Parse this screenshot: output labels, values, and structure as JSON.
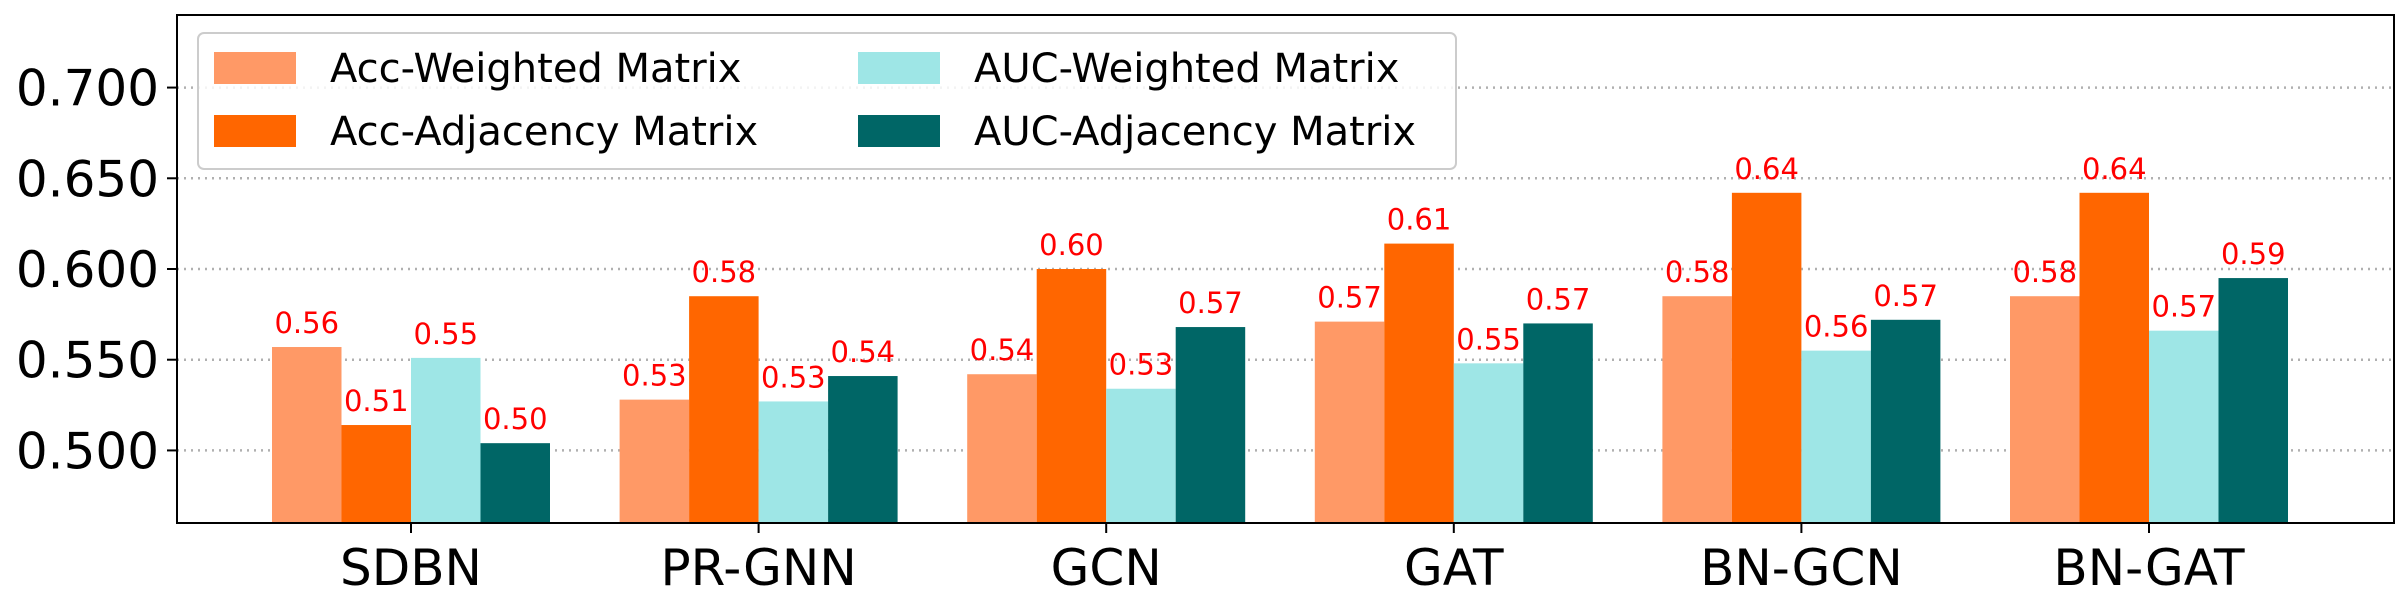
{
  "chart_data": {
    "type": "bar",
    "categories": [
      "SDBN",
      "PR-GNN",
      "GCN",
      "GAT",
      "BN-GCN",
      "BN-GAT"
    ],
    "series": [
      {
        "name": "Acc-Weighted Matrix",
        "color": "#ff9966",
        "values": [
          0.557,
          0.528,
          0.542,
          0.571,
          0.585,
          0.585
        ],
        "labels": [
          "0.56",
          "0.53",
          "0.54",
          "0.57",
          "0.58",
          "0.58"
        ]
      },
      {
        "name": "Acc-Adjacency Matrix",
        "color": "#ff6600",
        "values": [
          0.514,
          0.585,
          0.6,
          0.614,
          0.642,
          0.642
        ],
        "labels": [
          "0.51",
          "0.58",
          "0.60",
          "0.61",
          "0.64",
          "0.64"
        ]
      },
      {
        "name": "AUC-Weighted Matrix",
        "color": "#9ee6e6",
        "values": [
          0.551,
          0.527,
          0.534,
          0.548,
          0.555,
          0.566
        ],
        "labels": [
          "0.55",
          "0.53",
          "0.53",
          "0.55",
          "0.56",
          "0.57"
        ]
      },
      {
        "name": "AUC-Adjacency Matrix",
        "color": "#006666",
        "values": [
          0.504,
          0.541,
          0.568,
          0.57,
          0.572,
          0.595
        ],
        "labels": [
          "0.50",
          "0.54",
          "0.57",
          "0.57",
          "0.57",
          "0.59"
        ]
      }
    ],
    "yticks": [
      "0.500",
      "0.550",
      "0.600",
      "0.650",
      "0.700"
    ],
    "ytick_values": [
      0.5,
      0.55,
      0.6,
      0.65,
      0.7
    ],
    "ylim": [
      0.46,
      0.74
    ],
    "grid": "horizontal dotted",
    "legend_position": "top-left",
    "label_color": "#ff0000"
  }
}
